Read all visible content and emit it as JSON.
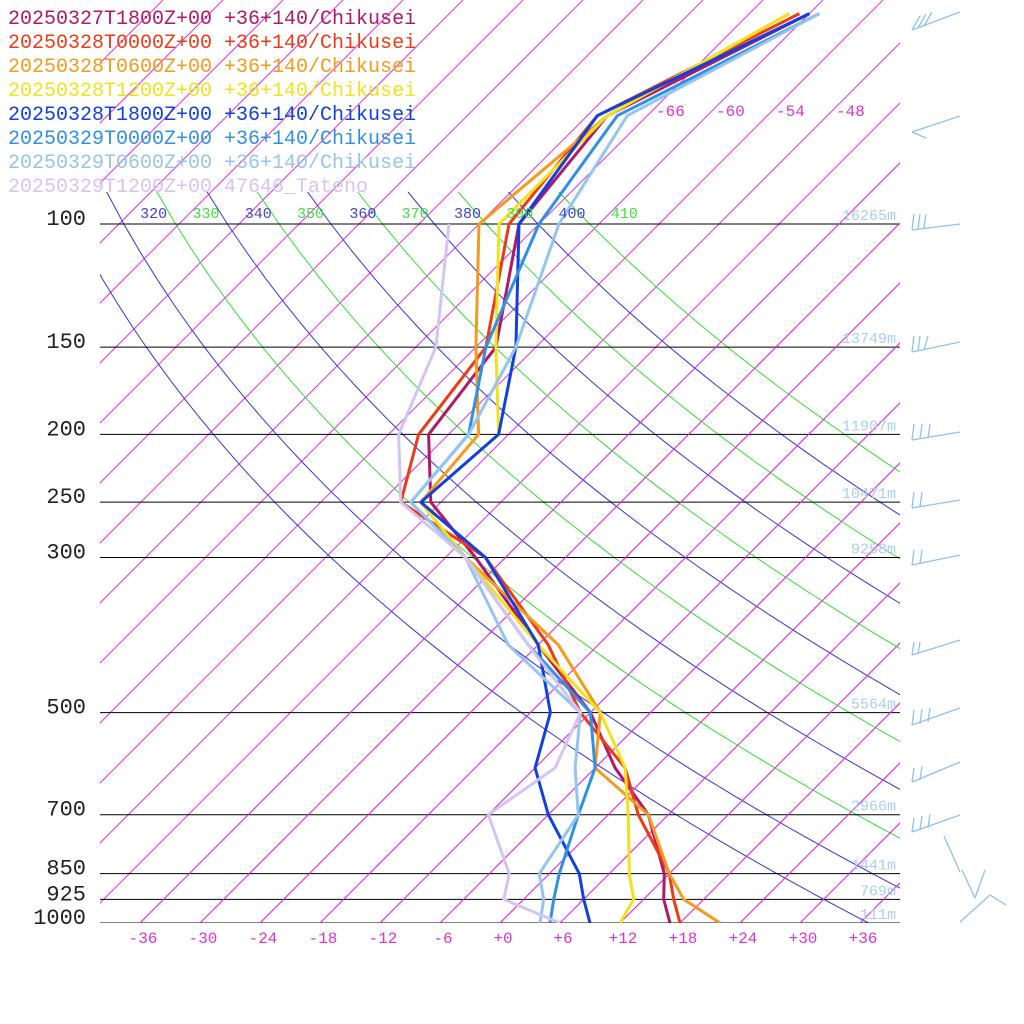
{
  "chart_data": {
    "type": "skewt",
    "ylog": true,
    "x": [
      1000,
      925,
      850,
      700,
      600,
      500,
      400,
      300,
      250,
      200,
      150,
      100,
      70,
      50
    ],
    "series": [
      {
        "name": "20250327T1800Z+00 +36+140/Chikusei",
        "color": "#b0186a",
        "values": [
          17,
          14,
          11.5,
          4,
          -4,
          -12,
          -24,
          -39,
          -49,
          -56,
          -58,
          -68,
          -70,
          -60
        ]
      },
      {
        "name": "20250328T0000Z+00 +36+140/Chikusei",
        "color": "#ee3a16",
        "values": [
          18,
          15,
          12,
          3,
          -3,
          -13,
          -23,
          -38,
          -52,
          -57,
          -59,
          -69,
          -71,
          -61
        ]
      },
      {
        "name": "20250328T0600Z+00 +36+140/Chikusei",
        "color": "#f59a1a",
        "values": [
          22,
          16,
          12,
          4,
          -6,
          -11,
          -22,
          -40,
          -50,
          -51,
          -60,
          -72,
          -70,
          -62
        ]
      },
      {
        "name": "20250328T1200Z+00 +36+140/Chikusei",
        "color": "#f2e21c",
        "values": [
          12,
          11,
          8,
          2,
          -3,
          -11,
          -24,
          -40,
          -50,
          -49,
          -58,
          -70,
          -70,
          -62
        ]
      },
      {
        "name": "20250328T1800Z+00 +36+140/Chikusei",
        "color": "#1040e0",
        "values": [
          9,
          6,
          3,
          -6,
          -12,
          -16,
          -24,
          -38,
          -50,
          -49,
          -56,
          -68,
          -71,
          -60
        ]
      },
      {
        "name": "20250329T0000Z+00 +36+140/Chikusei",
        "color": "#3090e6",
        "values": [
          5,
          3,
          1,
          -3,
          -6,
          -12,
          -25,
          -40,
          -51,
          -52,
          -59,
          -66,
          -69,
          -59
        ]
      },
      {
        "name": "20250329T0600Z+00 +36+140/Chikusei",
        "color": "#94c4f0",
        "values": [
          4,
          2,
          -1,
          -3,
          -8,
          -13,
          -27,
          -40,
          -51,
          -52,
          -56,
          -64,
          -68,
          -59
        ]
      },
      {
        "name": "20250329T1200Z+00 47646_Tateno",
        "color": "#d4c4f4",
        "values": [
          6,
          -2,
          -4,
          -12,
          -10,
          -13,
          -25,
          -40,
          -52,
          -59,
          -64,
          -75,
          null,
          null
        ]
      }
    ],
    "yticks": [
      100,
      150,
      200,
      250,
      300,
      500,
      700,
      850,
      925,
      1000
    ],
    "xticks": [
      -36,
      -30,
      -24,
      -18,
      -12,
      -6,
      {
        "value": 0,
        "label": "+0"
      },
      {
        "value": 6,
        "label": "+6"
      },
      {
        "value": 12,
        "label": "+12"
      },
      {
        "value": 18,
        "label": "+18"
      },
      {
        "value": 24,
        "label": "+24"
      },
      {
        "value": 30,
        "label": "+30"
      },
      {
        "value": 36,
        "label": "+36"
      }
    ],
    "isotherm_labels": [
      -66,
      -60,
      -54,
      -48
    ],
    "theta_labels": [
      320,
      330,
      340,
      350,
      360,
      370,
      380,
      390,
      400,
      410
    ],
    "height_labels": [
      {
        "value": 16265,
        "label": "16265m"
      },
      {
        "value": 13749,
        "label": "13749m"
      },
      {
        "value": 11907,
        "label": "11907m"
      },
      {
        "value": 10471,
        "label": "10471m"
      },
      {
        "value": 9258,
        "label": "9258m"
      },
      {
        "value": 5564,
        "label": "5564m"
      },
      {
        "value": 2966,
        "label": "2966m"
      },
      {
        "value": 1441,
        "label": "1441m"
      },
      {
        "value": 769,
        "label": "769m"
      },
      {
        "value": 111,
        "label": "111m"
      }
    ]
  }
}
